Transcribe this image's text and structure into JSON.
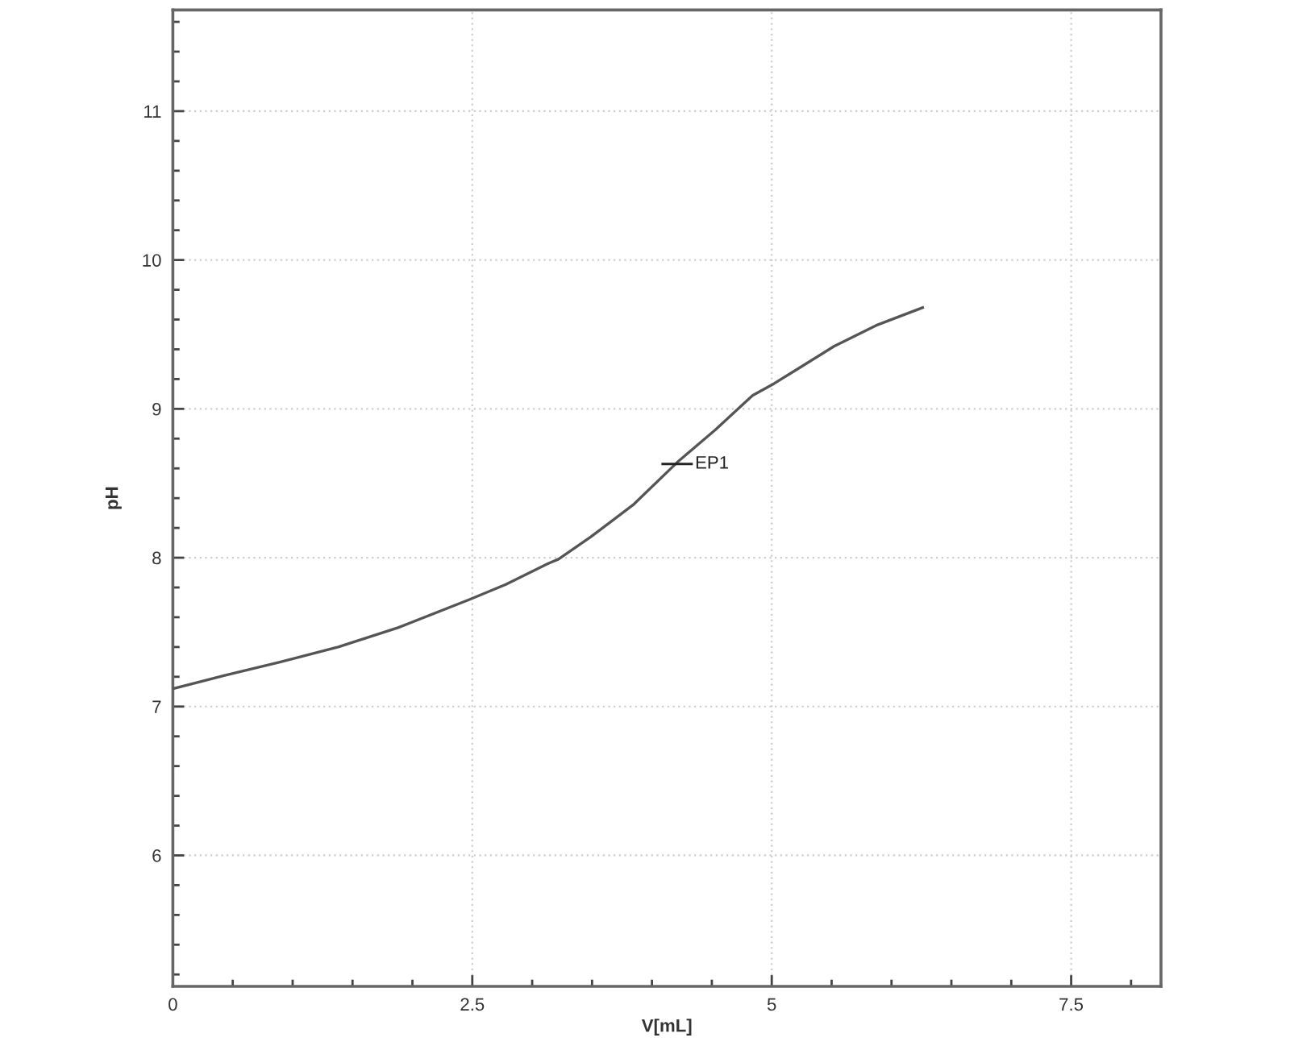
{
  "chart_data": {
    "type": "line",
    "xlabel": "V[mL]",
    "ylabel": "pH",
    "series": [
      {
        "color": "#555555",
        "x": [
          0,
          0.44,
          0.9,
          1.38,
          1.88,
          2.48,
          2.78,
          3.13,
          3.22,
          3.49,
          3.85,
          4.21,
          4.53,
          4.84,
          5.02,
          5.22,
          5.52,
          5.87,
          6.26
        ],
        "values": [
          7.12,
          7.21,
          7.3,
          7.4,
          7.53,
          7.72,
          7.82,
          7.96,
          7.99,
          8.14,
          8.36,
          8.64,
          8.86,
          9.09,
          9.17,
          9.27,
          9.42,
          9.56,
          9.68
        ]
      }
    ],
    "xlim": [
      0,
      8.25
    ],
    "ylim": [
      5.12,
      11.68
    ],
    "xticks": [
      0,
      2.5,
      5,
      7.5
    ],
    "yticks": [
      6,
      7,
      8,
      9,
      10,
      11
    ],
    "grid": true,
    "marker": "none",
    "line_style": "solid",
    "annotations": [
      {
        "text": "EP1",
        "x": 4.21,
        "y": 8.63
      }
    ]
  }
}
